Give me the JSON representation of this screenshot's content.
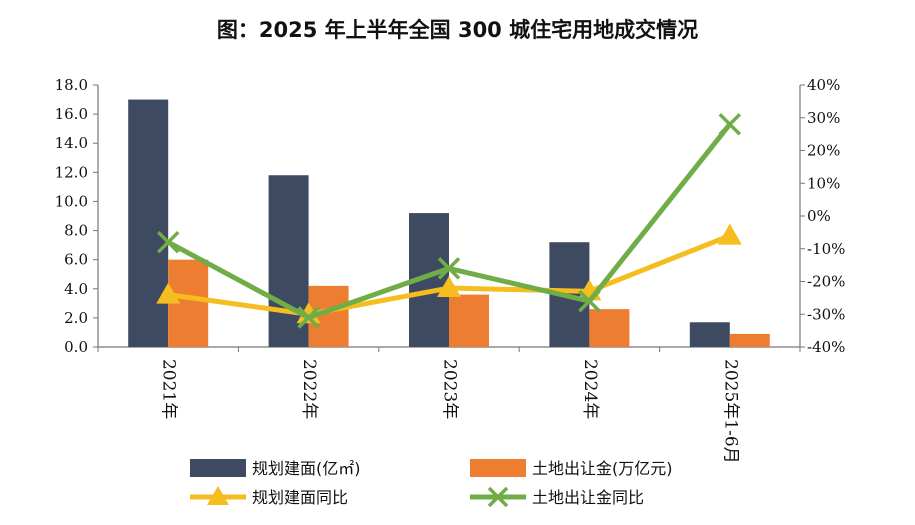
{
  "title": "图：2025 年上半年全国 300 城住宅用地成交情况",
  "chart_data": {
    "type": "bar",
    "categories": [
      "2021年",
      "2022年",
      "2023年",
      "2024年",
      "2025年1-6月"
    ],
    "left_axis": {
      "ylim": [
        0,
        18
      ],
      "ticks": [
        "0.0",
        "2.0",
        "4.0",
        "6.0",
        "8.0",
        "10.0",
        "12.0",
        "14.0",
        "16.0",
        "18.0"
      ]
    },
    "right_axis": {
      "ylim": [
        -40,
        40
      ],
      "ticks": [
        "-40%",
        "-30%",
        "-20%",
        "-10%",
        "0%",
        "10%",
        "20%",
        "30%",
        "40%"
      ]
    },
    "series": [
      {
        "name": "规划建面(亿㎡)",
        "type": "bar",
        "axis": "left",
        "color": "#3d4a62",
        "values": [
          17.0,
          11.8,
          9.2,
          7.2,
          1.7
        ]
      },
      {
        "name": "土地出让金(万亿元)",
        "type": "bar",
        "axis": "left",
        "color": "#ed7d31",
        "values": [
          6.0,
          4.2,
          3.6,
          2.6,
          0.9
        ]
      },
      {
        "name": "规划建面同比",
        "type": "line",
        "axis": "right",
        "color": "#f5bd1f",
        "marker": "triangle",
        "values": [
          -24,
          -30,
          -22,
          -23,
          -6
        ]
      },
      {
        "name": "土地出让金同比",
        "type": "line",
        "axis": "right",
        "color": "#70ad47",
        "marker": "x",
        "values": [
          -8,
          -31,
          -16,
          -26,
          28
        ]
      }
    ],
    "legend_position": "bottom",
    "grid": false
  }
}
